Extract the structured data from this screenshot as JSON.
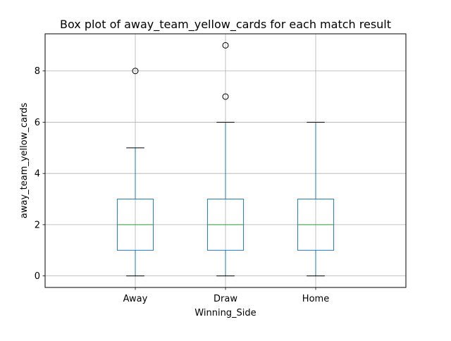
{
  "chart_data": {
    "type": "box",
    "title": "Box plot of away_team_yellow_cards for each match result",
    "xlabel": "Winning_Side",
    "ylabel": "away_team_yellow_cards",
    "categories": [
      "Away",
      "Draw",
      "Home"
    ],
    "boxes": [
      {
        "category": "Away",
        "whisker_low": 0,
        "q1": 1,
        "median": 2,
        "q3": 3,
        "whisker_high": 5,
        "outliers": [
          8
        ]
      },
      {
        "category": "Draw",
        "whisker_low": 0,
        "q1": 1,
        "median": 2,
        "q3": 3,
        "whisker_high": 6,
        "outliers": [
          7,
          9
        ]
      },
      {
        "category": "Home",
        "whisker_low": 0,
        "q1": 1,
        "median": 2,
        "q3": 3,
        "whisker_high": 6,
        "outliers": []
      }
    ],
    "ylim": [
      -0.45,
      9.45
    ],
    "yticks": [
      0,
      2,
      4,
      6,
      8
    ],
    "grid": true,
    "colors": {
      "box": "#1f77b4",
      "median": "#2ca02c",
      "grid": "#b0b0b0",
      "outlier": "#000000"
    }
  }
}
